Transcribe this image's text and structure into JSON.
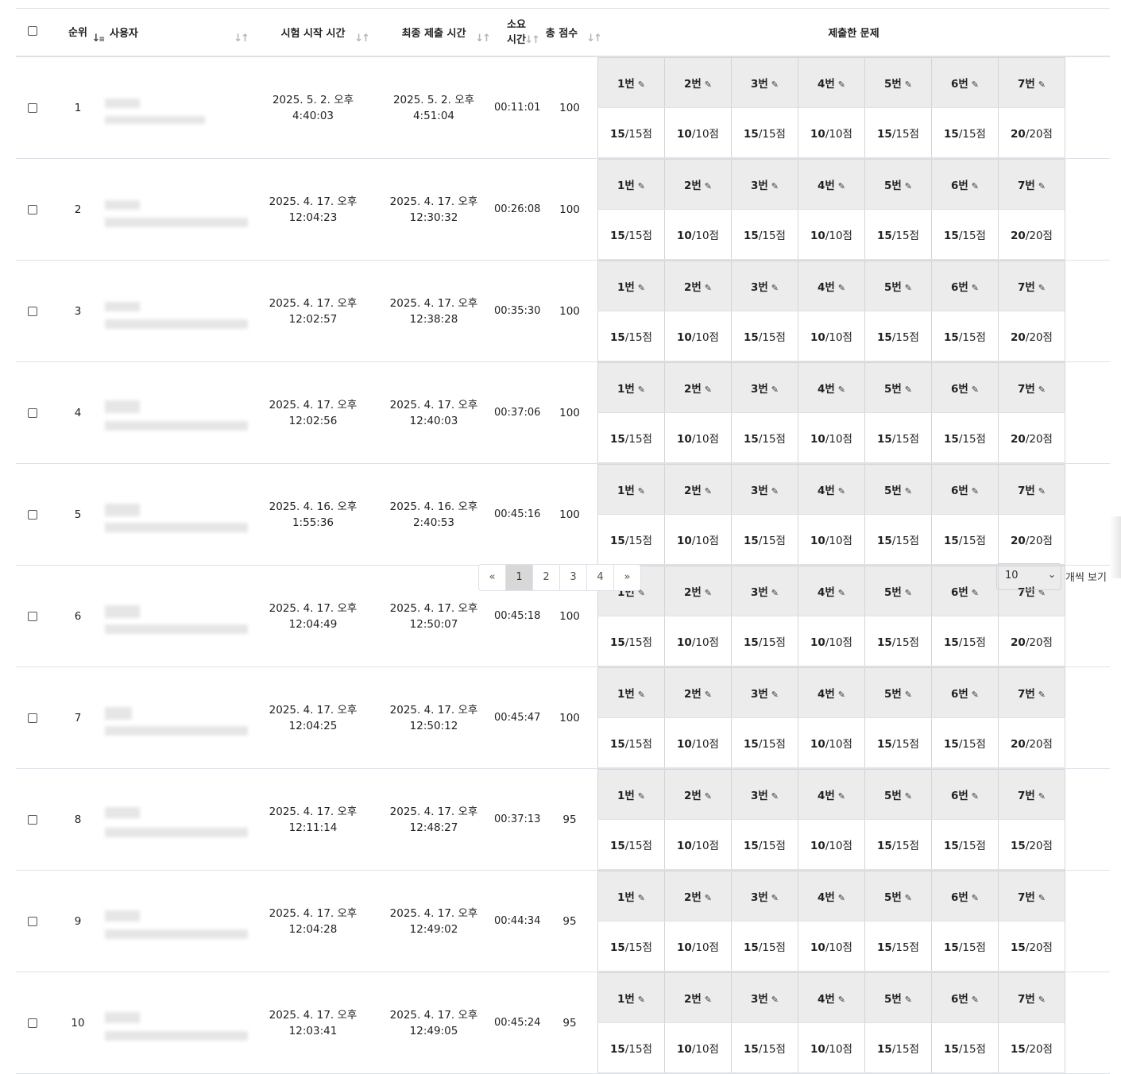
{
  "headers": {
    "rank": "순위",
    "user": "사용자",
    "start_time": "시험 시작 시간",
    "final_submit": "최종 제출 시간",
    "duration_l1": "소요",
    "duration_l2": "시간",
    "total_score": "총 점수",
    "submitted": "제출한 문제"
  },
  "icons": {
    "sort": "sort-icon",
    "sort_active": "sort-numeric-icon",
    "edit": "pencil-icon"
  },
  "rows": [
    {
      "rank": "1",
      "start_date": "2025. 5. 2. 오후",
      "start_time": "4:40:03",
      "end_date": "2025. 5. 2. 오후",
      "end_time": "4:51:04",
      "duration": "00:11:01",
      "total": "100",
      "problems": [
        {
          "label": "1번",
          "score": "15",
          "max": "/15점"
        },
        {
          "label": "2번",
          "score": "10",
          "max": "/10점"
        },
        {
          "label": "3번",
          "score": "15",
          "max": "/15점"
        },
        {
          "label": "4번",
          "score": "10",
          "max": "/10점"
        },
        {
          "label": "5번",
          "score": "15",
          "max": "/15점"
        },
        {
          "label": "6번",
          "score": "15",
          "max": "/15점"
        },
        {
          "label": "7번",
          "score": "20",
          "max": "/20점"
        }
      ]
    },
    {
      "rank": "2",
      "start_date": "2025. 4. 17. 오후",
      "start_time": "12:04:23",
      "end_date": "2025. 4. 17. 오후",
      "end_time": "12:30:32",
      "duration": "00:26:08",
      "total": "100",
      "problems": [
        {
          "label": "1번",
          "score": "15",
          "max": "/15점"
        },
        {
          "label": "2번",
          "score": "10",
          "max": "/10점"
        },
        {
          "label": "3번",
          "score": "15",
          "max": "/15점"
        },
        {
          "label": "4번",
          "score": "10",
          "max": "/10점"
        },
        {
          "label": "5번",
          "score": "15",
          "max": "/15점"
        },
        {
          "label": "6번",
          "score": "15",
          "max": "/15점"
        },
        {
          "label": "7번",
          "score": "20",
          "max": "/20점"
        }
      ]
    },
    {
      "rank": "3",
      "start_date": "2025. 4. 17. 오후",
      "start_time": "12:02:57",
      "end_date": "2025. 4. 17. 오후",
      "end_time": "12:38:28",
      "duration": "00:35:30",
      "total": "100",
      "problems": [
        {
          "label": "1번",
          "score": "15",
          "max": "/15점"
        },
        {
          "label": "2번",
          "score": "10",
          "max": "/10점"
        },
        {
          "label": "3번",
          "score": "15",
          "max": "/15점"
        },
        {
          "label": "4번",
          "score": "10",
          "max": "/10점"
        },
        {
          "label": "5번",
          "score": "15",
          "max": "/15점"
        },
        {
          "label": "6번",
          "score": "15",
          "max": "/15점"
        },
        {
          "label": "7번",
          "score": "20",
          "max": "/20점"
        }
      ]
    },
    {
      "rank": "4",
      "start_date": "2025. 4. 17. 오후",
      "start_time": "12:02:56",
      "end_date": "2025. 4. 17. 오후",
      "end_time": "12:40:03",
      "duration": "00:37:06",
      "total": "100",
      "problems": [
        {
          "label": "1번",
          "score": "15",
          "max": "/15점"
        },
        {
          "label": "2번",
          "score": "10",
          "max": "/10점"
        },
        {
          "label": "3번",
          "score": "15",
          "max": "/15점"
        },
        {
          "label": "4번",
          "score": "10",
          "max": "/10점"
        },
        {
          "label": "5번",
          "score": "15",
          "max": "/15점"
        },
        {
          "label": "6번",
          "score": "15",
          "max": "/15점"
        },
        {
          "label": "7번",
          "score": "20",
          "max": "/20점"
        }
      ]
    },
    {
      "rank": "5",
      "start_date": "2025. 4. 16. 오후",
      "start_time": "1:55:36",
      "end_date": "2025. 4. 16. 오후",
      "end_time": "2:40:53",
      "duration": "00:45:16",
      "total": "100",
      "problems": [
        {
          "label": "1번",
          "score": "15",
          "max": "/15점"
        },
        {
          "label": "2번",
          "score": "10",
          "max": "/10점"
        },
        {
          "label": "3번",
          "score": "15",
          "max": "/15점"
        },
        {
          "label": "4번",
          "score": "10",
          "max": "/10점"
        },
        {
          "label": "5번",
          "score": "15",
          "max": "/15점"
        },
        {
          "label": "6번",
          "score": "15",
          "max": "/15점"
        },
        {
          "label": "7번",
          "score": "20",
          "max": "/20점"
        }
      ]
    },
    {
      "rank": "6",
      "start_date": "2025. 4. 17. 오후",
      "start_time": "12:04:49",
      "end_date": "2025. 4. 17. 오후",
      "end_time": "12:50:07",
      "duration": "00:45:18",
      "total": "100",
      "problems": [
        {
          "label": "1번",
          "score": "15",
          "max": "/15점"
        },
        {
          "label": "2번",
          "score": "10",
          "max": "/10점"
        },
        {
          "label": "3번",
          "score": "15",
          "max": "/15점"
        },
        {
          "label": "4번",
          "score": "10",
          "max": "/10점"
        },
        {
          "label": "5번",
          "score": "15",
          "max": "/15점"
        },
        {
          "label": "6번",
          "score": "15",
          "max": "/15점"
        },
        {
          "label": "7번",
          "score": "20",
          "max": "/20점"
        }
      ]
    },
    {
      "rank": "7",
      "start_date": "2025. 4. 17. 오후",
      "start_time": "12:04:25",
      "end_date": "2025. 4. 17. 오후",
      "end_time": "12:50:12",
      "duration": "00:45:47",
      "total": "100",
      "problems": [
        {
          "label": "1번",
          "score": "15",
          "max": "/15점"
        },
        {
          "label": "2번",
          "score": "10",
          "max": "/10점"
        },
        {
          "label": "3번",
          "score": "15",
          "max": "/15점"
        },
        {
          "label": "4번",
          "score": "10",
          "max": "/10점"
        },
        {
          "label": "5번",
          "score": "15",
          "max": "/15점"
        },
        {
          "label": "6번",
          "score": "15",
          "max": "/15점"
        },
        {
          "label": "7번",
          "score": "20",
          "max": "/20점"
        }
      ]
    },
    {
      "rank": "8",
      "start_date": "2025. 4. 17. 오후",
      "start_time": "12:11:14",
      "end_date": "2025. 4. 17. 오후",
      "end_time": "12:48:27",
      "duration": "00:37:13",
      "total": "95",
      "problems": [
        {
          "label": "1번",
          "score": "15",
          "max": "/15점"
        },
        {
          "label": "2번",
          "score": "10",
          "max": "/10점"
        },
        {
          "label": "3번",
          "score": "15",
          "max": "/15점"
        },
        {
          "label": "4번",
          "score": "10",
          "max": "/10점"
        },
        {
          "label": "5번",
          "score": "15",
          "max": "/15점"
        },
        {
          "label": "6번",
          "score": "15",
          "max": "/15점"
        },
        {
          "label": "7번",
          "score": "15",
          "max": "/20점"
        }
      ]
    },
    {
      "rank": "9",
      "start_date": "2025. 4. 17. 오후",
      "start_time": "12:04:28",
      "end_date": "2025. 4. 17. 오후",
      "end_time": "12:49:02",
      "duration": "00:44:34",
      "total": "95",
      "problems": [
        {
          "label": "1번",
          "score": "15",
          "max": "/15점"
        },
        {
          "label": "2번",
          "score": "10",
          "max": "/10점"
        },
        {
          "label": "3번",
          "score": "15",
          "max": "/15점"
        },
        {
          "label": "4번",
          "score": "10",
          "max": "/10점"
        },
        {
          "label": "5번",
          "score": "15",
          "max": "/15점"
        },
        {
          "label": "6번",
          "score": "15",
          "max": "/15점"
        },
        {
          "label": "7번",
          "score": "15",
          "max": "/20점"
        }
      ]
    },
    {
      "rank": "10",
      "start_date": "2025. 4. 17. 오후",
      "start_time": "12:03:41",
      "end_date": "2025. 4. 17. 오후",
      "end_time": "12:49:05",
      "duration": "00:45:24",
      "total": "95",
      "problems": [
        {
          "label": "1번",
          "score": "15",
          "max": "/15점"
        },
        {
          "label": "2번",
          "score": "10",
          "max": "/10점"
        },
        {
          "label": "3번",
          "score": "15",
          "max": "/15점"
        },
        {
          "label": "4번",
          "score": "10",
          "max": "/10점"
        },
        {
          "label": "5번",
          "score": "15",
          "max": "/15점"
        },
        {
          "label": "6번",
          "score": "15",
          "max": "/15점"
        },
        {
          "label": "7번",
          "score": "15",
          "max": "/20점"
        }
      ]
    }
  ],
  "pagination": {
    "prev": "«",
    "pages": [
      "1",
      "2",
      "3",
      "4"
    ],
    "active": "1",
    "next": "»"
  },
  "per_page": {
    "value": "10",
    "label": "개씩 보기"
  },
  "colors": {
    "header_bg": "#ececec",
    "border": "#dee2e6",
    "active_page": "#d8d8d8"
  }
}
